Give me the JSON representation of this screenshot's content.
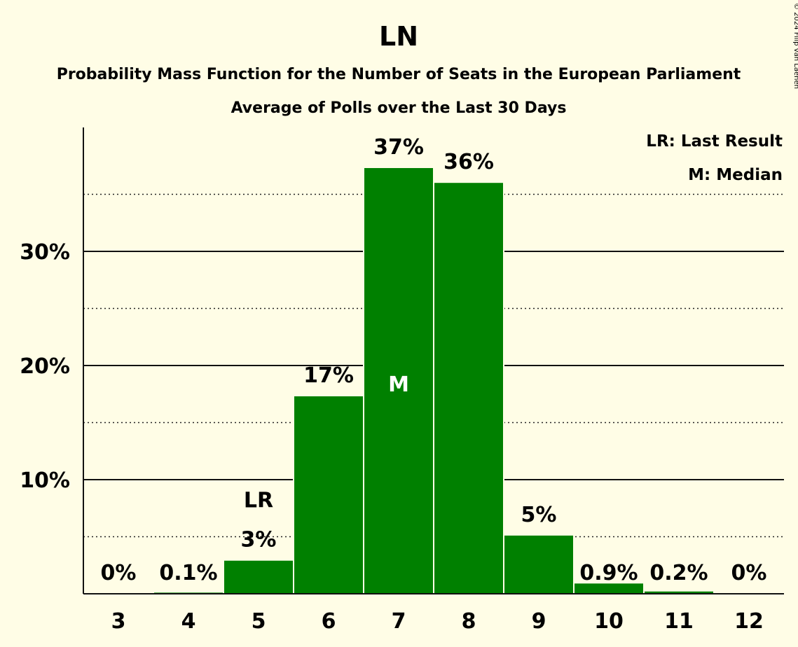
{
  "copyright": "© 2024 Filip van Laenen",
  "chart_data": {
    "type": "bar",
    "title": "LN",
    "subtitle": "Probability Mass Function for the Number of Seats in the European Parliament",
    "subtitle2": "Average of Polls over the Last 30 Days",
    "categories": [
      "3",
      "4",
      "5",
      "6",
      "7",
      "8",
      "9",
      "10",
      "11",
      "12"
    ],
    "values": [
      0,
      0.1,
      2.9,
      17.3,
      37.3,
      36.0,
      5.1,
      0.9,
      0.2,
      0
    ],
    "data_labels": [
      "0%",
      "0.1%",
      "3%",
      "17%",
      "37%",
      "36%",
      "5%",
      "0.9%",
      "0.2%",
      "0%"
    ],
    "y_ticks": [
      {
        "value": 10,
        "label": "10%"
      },
      {
        "value": 20,
        "label": "20%"
      },
      {
        "value": 30,
        "label": "30%"
      }
    ],
    "minor_gridlines": [
      5,
      15,
      25,
      35
    ],
    "ylim": [
      0,
      40
    ],
    "bar_color": "#008000",
    "last_result": {
      "category": "5",
      "marker": "LR"
    },
    "median": {
      "category": "7",
      "marker": "M"
    },
    "legend": [
      "LR: Last Result",
      "M: Median"
    ],
    "legend_position": "top-right",
    "grid": true
  }
}
